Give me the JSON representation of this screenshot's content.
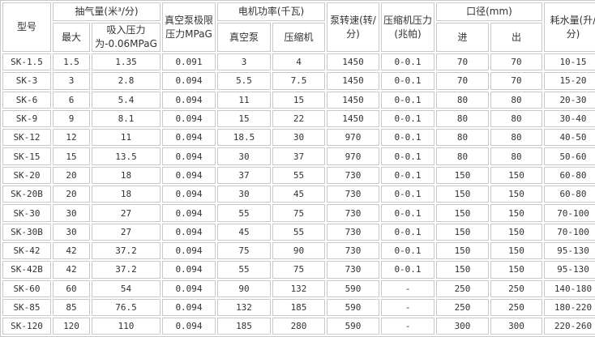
{
  "headers": {
    "model": "型号",
    "air_volume": "抽气量(米³/分)",
    "air_max": "最大",
    "air_at_pressure": "吸入压力为-0.06MPaG",
    "vacuum_limit": "真空泵极限压力MPaG",
    "motor_power": "电机功率(千瓦)",
    "motor_vacuum": "真空泵",
    "motor_compressor": "压缩机",
    "pump_speed": "泵转速(转/分)",
    "compressor_pressure": "压缩机压力(兆帕)",
    "port": "口径(mm)",
    "port_in": "进",
    "port_out": "出",
    "water": "耗水量(升/分)"
  },
  "rows": [
    [
      "SK-1.5",
      "1.5",
      "1.35",
      "0.091",
      "3",
      "4",
      "1450",
      "0-0.1",
      "70",
      "70",
      "10-15"
    ],
    [
      "SK-3",
      "3",
      "2.8",
      "0.094",
      "5.5",
      "7.5",
      "1450",
      "0-0.1",
      "70",
      "70",
      "15-20"
    ],
    [
      "SK-6",
      "6",
      "5.4",
      "0.094",
      "11",
      "15",
      "1450",
      "0-0.1",
      "80",
      "80",
      "20-30"
    ],
    [
      "SK-9",
      "9",
      "8.1",
      "0.094",
      "15",
      "22",
      "1450",
      "0-0.1",
      "80",
      "80",
      "30-40"
    ],
    [
      "SK-12",
      "12",
      "11",
      "0.094",
      "18.5",
      "30",
      "970",
      "0-0.1",
      "80",
      "80",
      "40-50"
    ],
    [
      "SK-15",
      "15",
      "13.5",
      "0.094",
      "30",
      "37",
      "970",
      "0-0.1",
      "80",
      "80",
      "50-60"
    ],
    [
      "SK-20",
      "20",
      "18",
      "0.094",
      "37",
      "55",
      "730",
      "0-0.1",
      "150",
      "150",
      "60-80"
    ],
    [
      "SK-20B",
      "20",
      "18",
      "0.094",
      "30",
      "45",
      "730",
      "0-0.1",
      "150",
      "150",
      "60-80"
    ],
    [
      "SK-30",
      "30",
      "27",
      "0.094",
      "55",
      "75",
      "730",
      "0-0.1",
      "150",
      "150",
      "70-100"
    ],
    [
      "SK-30B",
      "30",
      "27",
      "0.094",
      "45",
      "55",
      "730",
      "0-0.1",
      "150",
      "150",
      "70-100"
    ],
    [
      "SK-42",
      "42",
      "37.2",
      "0.094",
      "75",
      "90",
      "730",
      "0-0.1",
      "150",
      "150",
      "95-130"
    ],
    [
      "SK-42B",
      "42",
      "37.2",
      "0.094",
      "55",
      "75",
      "730",
      "0-0.1",
      "150",
      "150",
      "95-130"
    ],
    [
      "SK-60",
      "60",
      "54",
      "0.094",
      "90",
      "132",
      "590",
      "-",
      "250",
      "250",
      "140-180"
    ],
    [
      "SK-85",
      "85",
      "76.5",
      "0.094",
      "132",
      "185",
      "590",
      "-",
      "250",
      "250",
      "180-220"
    ],
    [
      "SK-120",
      "120",
      "110",
      "0.094",
      "185",
      "280",
      "590",
      "-",
      "300",
      "300",
      "220-260"
    ]
  ]
}
